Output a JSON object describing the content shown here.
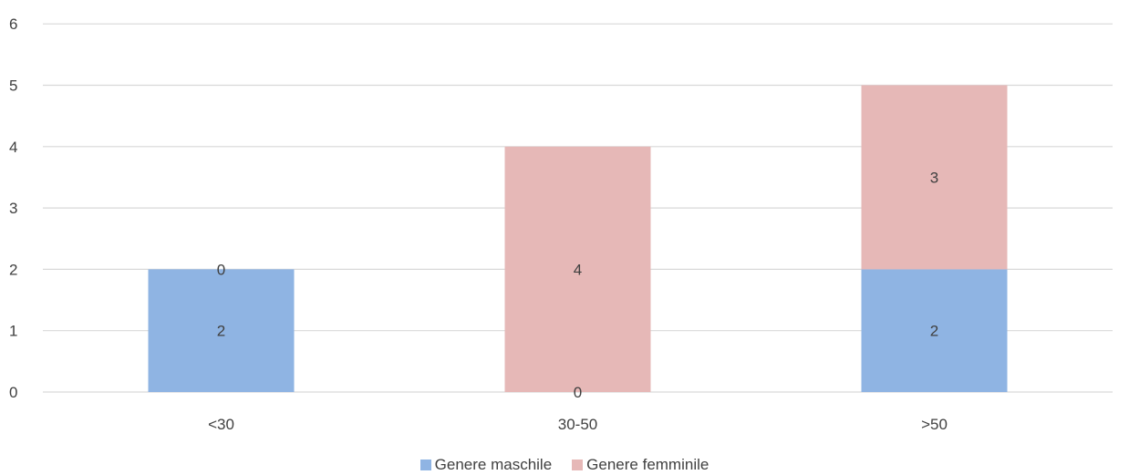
{
  "chart_data": {
    "type": "bar",
    "stacked": true,
    "title": "",
    "xlabel": "",
    "ylabel": "",
    "categories": [
      "<30",
      "30-50",
      ">50"
    ],
    "ylim": [
      0,
      6
    ],
    "yticks": [
      0,
      1,
      2,
      3,
      4,
      5,
      6
    ],
    "grid": true,
    "legend_position": "bottom",
    "series": [
      {
        "name": "Genere maschile",
        "values": [
          2,
          0,
          2
        ],
        "color": "#8fb4e3"
      },
      {
        "name": "Genere femminile",
        "values": [
          0,
          4,
          3
        ],
        "color": "#e6b8b7"
      }
    ],
    "data_labels": true,
    "text_color": "#404040",
    "grid_color": "#d9d9d9"
  }
}
